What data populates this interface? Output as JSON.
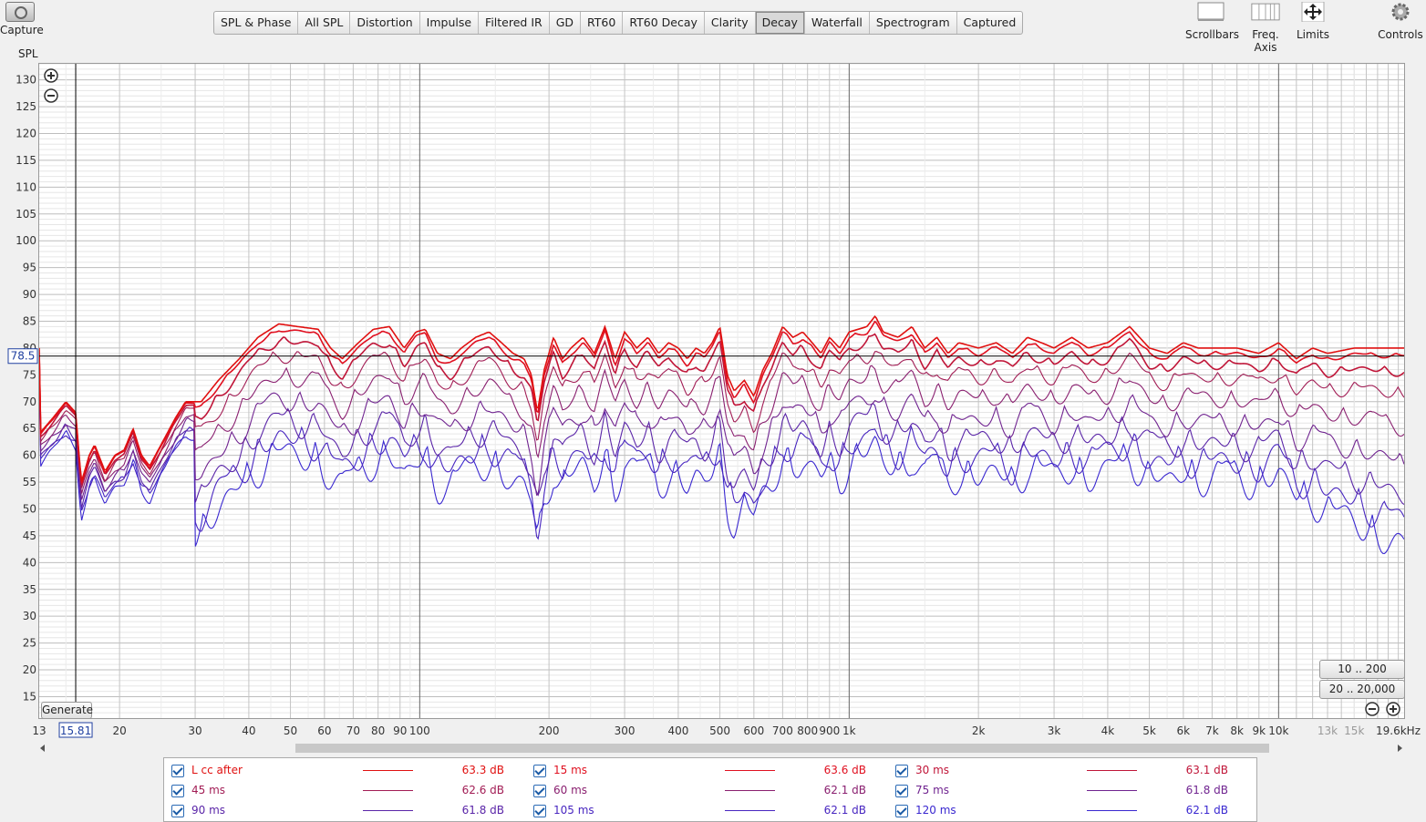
{
  "toolbar": {
    "capture_label": "Capture",
    "tabs": [
      "SPL & Phase",
      "All SPL",
      "Distortion",
      "Impulse",
      "Filtered IR",
      "GD",
      "RT60",
      "RT60 Decay",
      "Clarity",
      "Decay",
      "Waterfall",
      "Spectrogram",
      "Captured"
    ],
    "active_tab": "Decay",
    "scrollbars_label": "Scrollbars",
    "freq_axis_label": "Freq. Axis",
    "limits_label": "Limits",
    "controls_label": "Controls"
  },
  "plot": {
    "y_title": "SPL",
    "y_ticks": [
      130,
      125,
      120,
      115,
      110,
      105,
      100,
      95,
      90,
      85,
      80,
      75,
      70,
      65,
      60,
      55,
      50,
      45,
      40,
      35,
      30,
      25,
      20,
      15
    ],
    "x_ticks": [
      {
        "f": 13,
        "label": "13"
      },
      {
        "f": 20,
        "label": "20"
      },
      {
        "f": 30,
        "label": "30"
      },
      {
        "f": 40,
        "label": "40"
      },
      {
        "f": 50,
        "label": "50"
      },
      {
        "f": 60,
        "label": "60"
      },
      {
        "f": 70,
        "label": "70"
      },
      {
        "f": 80,
        "label": "80"
      },
      {
        "f": 90,
        "label": "90"
      },
      {
        "f": 100,
        "label": "100"
      },
      {
        "f": 200,
        "label": "200"
      },
      {
        "f": 300,
        "label": "300"
      },
      {
        "f": 400,
        "label": "400"
      },
      {
        "f": 500,
        "label": "500"
      },
      {
        "f": 600,
        "label": "600"
      },
      {
        "f": 700,
        "label": "700"
      },
      {
        "f": 800,
        "label": "800"
      },
      {
        "f": 900,
        "label": "900"
      },
      {
        "f": 1000,
        "label": "1k"
      },
      {
        "f": 2000,
        "label": "2k"
      },
      {
        "f": 3000,
        "label": "3k"
      },
      {
        "f": 4000,
        "label": "4k"
      },
      {
        "f": 5000,
        "label": "5k"
      },
      {
        "f": 6000,
        "label": "6k"
      },
      {
        "f": 7000,
        "label": "7k"
      },
      {
        "f": 8000,
        "label": "8k"
      },
      {
        "f": 9000,
        "label": "9k"
      },
      {
        "f": 10000,
        "label": "10k"
      },
      {
        "f": 13000,
        "label": "13k"
      },
      {
        "f": 15000,
        "label": "15k"
      },
      {
        "f": 19600,
        "label": "19.6kHz"
      }
    ],
    "cursor_x_label": "15.81",
    "cursor_y_label": "78.5",
    "generate_label": "Generate",
    "range_btn_1": "10 .. 200",
    "range_btn_2": "20 .. 20,000"
  },
  "chart_data": {
    "type": "line",
    "x_scale": "log",
    "xlim": [
      13,
      19600
    ],
    "ylim": [
      11,
      133
    ],
    "ylabel": "SPL",
    "cursor": {
      "x": 15.81,
      "y": 78.5
    },
    "series": [
      {
        "name": "L cc after",
        "color": "#e01010",
        "offset": 0
      },
      {
        "name": "15 ms",
        "color": "#e01020",
        "offset": -0.6
      },
      {
        "name": "30 ms",
        "color": "#c01538",
        "offset": -2.2
      },
      {
        "name": "45 ms",
        "color": "#a21d55",
        "offset": -4.5
      },
      {
        "name": "60 ms",
        "color": "#8a2070",
        "offset": -8.0
      },
      {
        "name": "75 ms",
        "color": "#702490",
        "offset": -12.0
      },
      {
        "name": "90 ms",
        "color": "#5a25a8",
        "offset": -15.5
      },
      {
        "name": "105 ms",
        "color": "#4826c0",
        "offset": -18.5
      },
      {
        "name": "120 ms",
        "color": "#3a28d0",
        "offset": -21.0
      }
    ],
    "base_curve": [
      [
        13,
        64
      ],
      [
        14,
        67
      ],
      [
        15,
        70
      ],
      [
        15.8,
        68
      ],
      [
        16.3,
        55
      ],
      [
        17,
        60
      ],
      [
        17.5,
        62
      ],
      [
        18.5,
        57
      ],
      [
        19.5,
        60
      ],
      [
        20.5,
        61
      ],
      [
        21.5,
        65
      ],
      [
        22.5,
        60
      ],
      [
        23.5,
        58
      ],
      [
        25,
        62
      ],
      [
        27,
        67
      ],
      [
        28.5,
        70
      ],
      [
        31,
        70
      ],
      [
        34,
        74
      ],
      [
        38,
        78
      ],
      [
        42,
        82
      ],
      [
        47,
        84.5
      ],
      [
        52,
        84
      ],
      [
        58,
        83.5
      ],
      [
        62,
        80
      ],
      [
        66,
        78
      ],
      [
        72,
        81
      ],
      [
        78,
        83.5
      ],
      [
        85,
        84
      ],
      [
        92,
        80
      ],
      [
        98,
        83
      ],
      [
        103,
        83.5
      ],
      [
        110,
        79
      ],
      [
        118,
        78
      ],
      [
        125,
        80
      ],
      [
        135,
        82
      ],
      [
        145,
        83
      ],
      [
        155,
        81
      ],
      [
        165,
        79
      ],
      [
        175,
        78
      ],
      [
        182,
        75
      ],
      [
        188,
        68
      ],
      [
        195,
        76
      ],
      [
        205,
        82
      ],
      [
        215,
        78
      ],
      [
        225,
        80
      ],
      [
        240,
        82
      ],
      [
        255,
        79
      ],
      [
        270,
        84
      ],
      [
        285,
        78
      ],
      [
        300,
        83
      ],
      [
        320,
        80
      ],
      [
        340,
        82
      ],
      [
        360,
        79
      ],
      [
        380,
        81
      ],
      [
        400,
        80
      ],
      [
        420,
        78
      ],
      [
        440,
        80
      ],
      [
        460,
        79
      ],
      [
        480,
        81
      ],
      [
        500,
        84
      ],
      [
        520,
        75
      ],
      [
        540,
        72
      ],
      [
        570,
        74
      ],
      [
        600,
        71
      ],
      [
        630,
        76
      ],
      [
        660,
        79
      ],
      [
        700,
        84
      ],
      [
        740,
        82
      ],
      [
        780,
        83
      ],
      [
        820,
        81
      ],
      [
        860,
        79
      ],
      [
        900,
        82
      ],
      [
        950,
        80
      ],
      [
        1000,
        83
      ],
      [
        1100,
        84
      ],
      [
        1150,
        86
      ],
      [
        1200,
        83
      ],
      [
        1300,
        82
      ],
      [
        1400,
        84
      ],
      [
        1500,
        80
      ],
      [
        1600,
        82
      ],
      [
        1700,
        79
      ],
      [
        1800,
        81
      ],
      [
        2000,
        80
      ],
      [
        2200,
        81
      ],
      [
        2400,
        79
      ],
      [
        2600,
        82
      ],
      [
        2800,
        81
      ],
      [
        3000,
        80
      ],
      [
        3300,
        82
      ],
      [
        3600,
        80
      ],
      [
        4000,
        81
      ],
      [
        4500,
        84
      ],
      [
        5000,
        80
      ],
      [
        5500,
        79
      ],
      [
        6000,
        81
      ],
      [
        6500,
        80
      ],
      [
        7000,
        80
      ],
      [
        8000,
        80
      ],
      [
        9000,
        79
      ],
      [
        10000,
        81
      ],
      [
        11000,
        78
      ],
      [
        12000,
        80
      ],
      [
        13000,
        79
      ],
      [
        15000,
        80
      ],
      [
        17000,
        80
      ],
      [
        19600,
        80
      ]
    ]
  },
  "legend": {
    "items": [
      {
        "name": "L cc after",
        "value": "63.3 dB",
        "color": "#e01010"
      },
      {
        "name": "15 ms",
        "value": "63.6 dB",
        "color": "#e01020"
      },
      {
        "name": "30 ms",
        "value": "63.1 dB",
        "color": "#c01538"
      },
      {
        "name": "45 ms",
        "value": "62.6 dB",
        "color": "#a21d55"
      },
      {
        "name": "60 ms",
        "value": "62.1 dB",
        "color": "#8a2070"
      },
      {
        "name": "75 ms",
        "value": "61.8 dB",
        "color": "#702490"
      },
      {
        "name": "90 ms",
        "value": "61.8 dB",
        "color": "#5a25a8"
      },
      {
        "name": "105 ms",
        "value": "62.1 dB",
        "color": "#4826c0"
      },
      {
        "name": "120 ms",
        "value": "62.1 dB",
        "color": "#3a28d0"
      }
    ]
  }
}
